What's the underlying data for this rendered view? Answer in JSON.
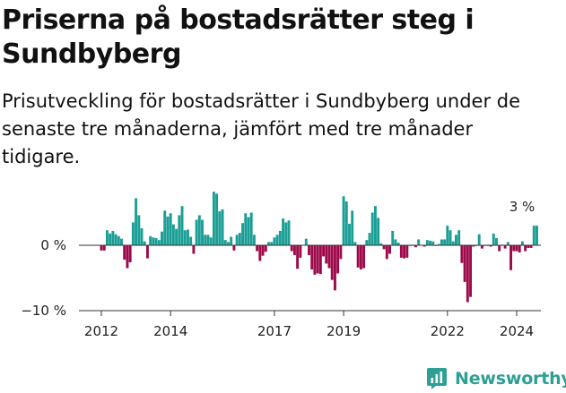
{
  "header": {
    "title": "Priserna på bostadsrätter steg i Sundbyberg",
    "subtitle": "Prisutveckling för bostadsrätter i Sundbyberg under de senaste tre månaderna, jämfört med tre månader tidigare."
  },
  "colors": {
    "positive": "#1a9e95",
    "negative": "#9d0a4a",
    "axis": "#333333"
  },
  "chart_data": {
    "type": "bar",
    "title": "",
    "xlabel": "",
    "ylabel": "",
    "ylim": [
      -10,
      8
    ],
    "y_ticks": [
      {
        "value": 0,
        "label": "0 %"
      },
      {
        "value": -10,
        "label": "−10 %"
      }
    ],
    "x_ticks": [
      {
        "value": 2012.0,
        "label": "2012"
      },
      {
        "value": 2014.0,
        "label": "2014"
      },
      {
        "value": 2017.0,
        "label": "2017"
      },
      {
        "value": 2019.0,
        "label": "2019"
      },
      {
        "value": 2022.0,
        "label": "2022"
      },
      {
        "value": 2024.0,
        "label": "2024"
      }
    ],
    "series": [
      {
        "x_start": 2011.0,
        "x_step": 0.08333,
        "values": [
          0.0,
          0.0,
          0.0,
          0.0,
          0.0,
          0.0,
          0.0,
          0.0,
          0.0,
          0.0,
          0.0,
          0.0,
          -0.8,
          -0.8,
          2.3,
          1.8,
          2.2,
          1.7,
          1.4,
          1.0,
          -2.2,
          -3.5,
          -2.6,
          3.5,
          7.2,
          4.6,
          2.6,
          0.6,
          -2.0,
          1.4,
          1.2,
          1.1,
          0.8,
          2.1,
          5.3,
          4.4,
          4.9,
          3.2,
          2.5,
          4.6,
          6.0,
          2.3,
          2.4,
          1.3,
          -1.3,
          3.9,
          4.6,
          3.9,
          1.6,
          1.6,
          1.2,
          8.2,
          7.9,
          5.2,
          5.5,
          0.8,
          0.5,
          1.3,
          -0.8,
          1.6,
          1.9,
          3.4,
          4.9,
          4.3,
          5.0,
          1.6,
          -0.9,
          -2.4,
          -1.6,
          -1.0,
          0.5,
          0.5,
          1.2,
          1.6,
          2.2,
          4.1,
          3.5,
          3.8,
          -0.9,
          -1.5,
          -3.6,
          -1.9,
          0.0,
          1.0,
          -1.5,
          -3.7,
          -4.5,
          -4.3,
          -4.4,
          -1.7,
          -2.8,
          -3.5,
          -5.3,
          -6.9,
          -4.3,
          -2.1,
          7.5,
          6.7,
          3.3,
          5.3,
          0.5,
          -3.4,
          -3.7,
          -3.5,
          0.8,
          1.9,
          5.0,
          6.0,
          4.2,
          0.3,
          -0.6,
          -2.1,
          -1.3,
          2.2,
          0.9,
          0.4,
          -1.9,
          -2.0,
          -1.9,
          -0.1,
          0.1,
          -0.3,
          0.9,
          0.0,
          -0.2,
          0.8,
          0.7,
          0.6,
          -0.1,
          0.2,
          0.9,
          0.9,
          3.0,
          2.3,
          0.6,
          1.6,
          2.3,
          -2.7,
          -5.6,
          -8.7,
          -7.9,
          -0.2,
          -0.1,
          1.7,
          -0.5,
          -0.1,
          -0.1,
          -0.2,
          1.8,
          1.1,
          -0.9,
          0.1,
          -0.5,
          0.5,
          -3.8,
          -0.9,
          -0.9,
          -1.1,
          0.6,
          -0.9,
          -0.4,
          -0.4,
          3.0,
          3.0
        ]
      }
    ],
    "annotations": [
      {
        "x": 2024.0,
        "y": 3.0,
        "text": "3 %"
      }
    ]
  },
  "brand": {
    "name": "Newsworthy",
    "icon": "newsworthy-logo-icon"
  }
}
